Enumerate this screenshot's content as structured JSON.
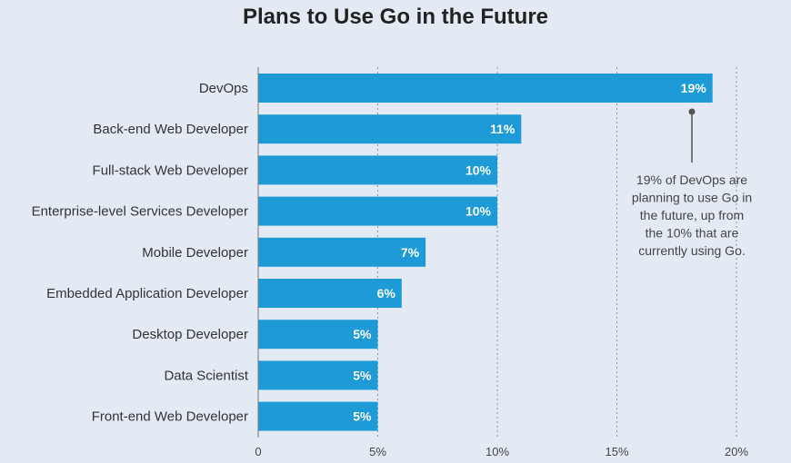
{
  "chart_data": {
    "type": "bar",
    "orientation": "horizontal",
    "title": "Plans to Use Go in the Future",
    "categories": [
      "DevOps",
      "Back-end Web Developer",
      "Full-stack Web Developer",
      "Enterprise-level Services Developer",
      "Mobile Developer",
      "Embedded Application Developer",
      "Desktop Developer",
      "Data Scientist",
      "Front-end Web Developer"
    ],
    "values": [
      19,
      11,
      10,
      10,
      7,
      6,
      5,
      5,
      5
    ],
    "value_labels": [
      "19%",
      "11%",
      "10%",
      "10%",
      "7%",
      "6%",
      "5%",
      "5%",
      "5%"
    ],
    "xlim": [
      0,
      20
    ],
    "xticks": [
      0,
      5,
      10,
      15,
      20
    ],
    "xtick_labels": [
      "0",
      "5%",
      "10%",
      "15%",
      "20%"
    ],
    "grid": "dotted vertical lines at 5%, 10%, 15%, 20%",
    "bar_color": "#1e9bd7",
    "annotation": {
      "points_to": "DevOps",
      "lines": [
        "19% of DevOps are",
        "planning to use Go in",
        "the future, up from",
        "the 10% that are",
        "currently using Go."
      ]
    }
  }
}
